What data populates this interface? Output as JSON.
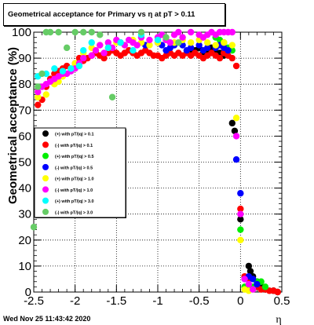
{
  "title": "Geometrical acceptance for Primary vs   η at pT > 0.11",
  "footer": "Wed Nov 25 11:43:42 2020",
  "chart_data": {
    "type": "scatter",
    "xlabel": "η",
    "ylabel": "Geometrical acceptance (%)",
    "xlim": [
      -2.5,
      0.5
    ],
    "ylim": [
      0,
      100
    ],
    "x_ticks": [
      -2.5,
      -2,
      -1.5,
      -1,
      -0.5,
      0,
      0.5
    ],
    "x_tick_labels": [
      "-2.5",
      "-2",
      "-1.5",
      "-1",
      "-0.5",
      "0",
      "0.5"
    ],
    "y_ticks": [
      0,
      10,
      20,
      30,
      40,
      50,
      60,
      70,
      80,
      90,
      100
    ],
    "y_tick_labels": [
      "0",
      "10",
      "20",
      "30",
      "40",
      "50",
      "60",
      "70",
      "80",
      "90",
      "100"
    ],
    "grid": true,
    "legend_position": "middle-left",
    "series": [
      {
        "name": "(+) with pT/|q| > 0.1",
        "color": "#000000",
        "points": [
          [
            -0.6,
            92
          ],
          [
            -0.55,
            93
          ],
          [
            -0.5,
            94
          ],
          [
            -0.45,
            92
          ],
          [
            -0.4,
            93
          ],
          [
            -0.35,
            94
          ],
          [
            -0.3,
            92
          ],
          [
            -0.25,
            92
          ],
          [
            -0.2,
            91
          ],
          [
            -0.1,
            65
          ],
          [
            -0.07,
            62
          ],
          [
            0.0,
            28
          ],
          [
            0.1,
            10
          ],
          [
            0.12,
            8
          ],
          [
            0.15,
            6
          ],
          [
            0.2,
            4
          ],
          [
            0.25,
            2
          ],
          [
            0.3,
            1
          ],
          [
            0.4,
            0.5
          ],
          [
            0.45,
            0
          ]
        ]
      },
      {
        "name": "(-) with pT/|q| > 0.1",
        "color": "#ff0000",
        "points": [
          [
            -2.45,
            72
          ],
          [
            -2.4,
            74
          ],
          [
            -2.35,
            79
          ],
          [
            -2.3,
            82
          ],
          [
            -2.25,
            84
          ],
          [
            -2.2,
            85
          ],
          [
            -2.15,
            86
          ],
          [
            -2.1,
            87
          ],
          [
            -2.0,
            88
          ],
          [
            -1.95,
            90
          ],
          [
            -1.9,
            89
          ],
          [
            -1.85,
            90
          ],
          [
            -1.8,
            91
          ],
          [
            -1.75,
            92
          ],
          [
            -1.7,
            91
          ],
          [
            -1.65,
            90
          ],
          [
            -1.6,
            92
          ],
          [
            -1.55,
            93
          ],
          [
            -1.5,
            92
          ],
          [
            -1.45,
            91
          ],
          [
            -1.4,
            92
          ],
          [
            -1.35,
            93
          ],
          [
            -1.3,
            92
          ],
          [
            -1.25,
            91
          ],
          [
            -1.2,
            92
          ],
          [
            -1.15,
            93
          ],
          [
            -1.1,
            92
          ],
          [
            -1.05,
            91
          ],
          [
            -1.0,
            91
          ],
          [
            -0.95,
            90
          ],
          [
            -0.9,
            91
          ],
          [
            -0.85,
            92
          ],
          [
            -0.8,
            91
          ],
          [
            -0.75,
            92
          ],
          [
            -0.7,
            91
          ],
          [
            -0.65,
            92
          ],
          [
            -0.6,
            91
          ],
          [
            -0.55,
            92
          ],
          [
            -0.5,
            91
          ],
          [
            -0.45,
            90
          ],
          [
            -0.4,
            91
          ],
          [
            -0.35,
            92
          ],
          [
            -0.3,
            91
          ],
          [
            -0.25,
            90
          ],
          [
            -0.2,
            92
          ],
          [
            -0.15,
            91
          ],
          [
            -0.1,
            90
          ],
          [
            -0.05,
            87
          ],
          [
            0.0,
            32
          ],
          [
            0.05,
            6
          ],
          [
            0.1,
            5
          ],
          [
            0.2,
            2
          ],
          [
            0.25,
            1
          ],
          [
            0.3,
            1
          ],
          [
            0.35,
            0.5
          ],
          [
            0.4,
            0.5
          ],
          [
            0.45,
            0
          ]
        ]
      },
      {
        "name": "(+) with pT/|q| > 0.5",
        "color": "#00ee00",
        "points": [
          [
            -0.3,
            98
          ],
          [
            -0.25,
            97
          ],
          [
            -0.2,
            96
          ],
          [
            -0.15,
            94
          ],
          [
            -0.1,
            93
          ],
          [
            0.0,
            24
          ],
          [
            0.05,
            2
          ],
          [
            0.1,
            1
          ],
          [
            0.15,
            2
          ],
          [
            0.2,
            4
          ],
          [
            0.25,
            4
          ],
          [
            0.3,
            2
          ]
        ]
      },
      {
        "name": "(-) with pT/|q| > 0.5",
        "color": "#0000ff",
        "points": [
          [
            -1.15,
            95
          ],
          [
            -1.0,
            96
          ],
          [
            -0.95,
            95
          ],
          [
            -0.9,
            93
          ],
          [
            -0.85,
            94
          ],
          [
            -0.8,
            95
          ],
          [
            -0.7,
            95
          ],
          [
            -0.65,
            93
          ],
          [
            -0.6,
            94
          ],
          [
            -0.5,
            95
          ],
          [
            -0.45,
            93
          ],
          [
            -0.4,
            94
          ],
          [
            -0.3,
            94
          ],
          [
            -0.25,
            95
          ],
          [
            -0.2,
            94
          ],
          [
            -0.15,
            93
          ],
          [
            -0.05,
            51
          ],
          [
            0.0,
            38
          ],
          [
            0.05,
            5
          ],
          [
            0.1,
            6
          ],
          [
            0.15,
            5
          ],
          [
            0.2,
            3
          ]
        ]
      },
      {
        "name": "(+) with pT/|q| > 1.0",
        "color": "#ffff00",
        "points": [
          [
            -2.45,
            75
          ],
          [
            -2.35,
            76
          ],
          [
            -2.25,
            80
          ],
          [
            -2.2,
            81
          ],
          [
            -2.15,
            83
          ],
          [
            -2.05,
            86
          ],
          [
            -2.0,
            88
          ],
          [
            -1.9,
            92
          ],
          [
            -1.8,
            94
          ],
          [
            -1.75,
            93
          ],
          [
            -1.7,
            95
          ],
          [
            -1.6,
            94
          ],
          [
            -1.5,
            96
          ],
          [
            -1.4,
            95
          ],
          [
            -1.3,
            97
          ],
          [
            -1.2,
            96
          ],
          [
            -1.1,
            95
          ],
          [
            -1.0,
            96
          ],
          [
            -0.9,
            97
          ],
          [
            -0.8,
            96
          ],
          [
            -0.7,
            97
          ],
          [
            -0.6,
            96
          ],
          [
            -0.5,
            97
          ],
          [
            -0.4,
            96
          ],
          [
            -0.3,
            95
          ],
          [
            -0.2,
            96
          ],
          [
            -0.1,
            95
          ],
          [
            -0.05,
            67
          ],
          [
            0.0,
            20
          ],
          [
            0.05,
            1
          ],
          [
            0.1,
            0.5
          ]
        ]
      },
      {
        "name": "(-) with pT/|q| > 1.0",
        "color": "#ff00ff",
        "points": [
          [
            -2.45,
            77
          ],
          [
            -2.4,
            79
          ],
          [
            -2.35,
            80
          ],
          [
            -2.3,
            81
          ],
          [
            -2.25,
            82
          ],
          [
            -2.2,
            83
          ],
          [
            -2.15,
            84
          ],
          [
            -2.1,
            84
          ],
          [
            -2.05,
            85
          ],
          [
            -2.0,
            86
          ],
          [
            -1.95,
            88
          ],
          [
            -1.9,
            90
          ],
          [
            -1.8,
            91
          ],
          [
            -1.75,
            93
          ],
          [
            -1.7,
            95
          ],
          [
            -1.65,
            92
          ],
          [
            -1.6,
            96
          ],
          [
            -1.55,
            94
          ],
          [
            -1.5,
            97
          ],
          [
            -1.45,
            96
          ],
          [
            -1.4,
            95
          ],
          [
            -1.35,
            97
          ],
          [
            -1.3,
            96
          ],
          [
            -1.25,
            95
          ],
          [
            -1.2,
            98
          ],
          [
            -1.1,
            97
          ],
          [
            -1.0,
            98
          ],
          [
            -0.95,
            99
          ],
          [
            -0.9,
            97
          ],
          [
            -0.85,
            96
          ],
          [
            -0.8,
            99
          ],
          [
            -0.75,
            100
          ],
          [
            -0.7,
            98
          ],
          [
            -0.6,
            100
          ],
          [
            -0.5,
            99
          ],
          [
            -0.45,
            98
          ],
          [
            -0.4,
            99
          ],
          [
            -0.35,
            100
          ],
          [
            -0.3,
            99
          ],
          [
            -0.25,
            100
          ],
          [
            -0.2,
            100
          ],
          [
            -0.15,
            100
          ],
          [
            -0.1,
            100
          ],
          [
            -0.05,
            60
          ],
          [
            0.0,
            30
          ],
          [
            0.05,
            5
          ],
          [
            0.1,
            3
          ],
          [
            0.15,
            1
          ]
        ]
      },
      {
        "name": "(+) with pT/|q| > 3.0",
        "color": "#00ffff",
        "points": [
          [
            -2.45,
            83
          ],
          [
            -2.35,
            84
          ],
          [
            -2.25,
            86
          ],
          [
            -2.15,
            85
          ],
          [
            -2.05,
            86
          ],
          [
            -1.95,
            87
          ],
          [
            -1.9,
            93
          ],
          [
            -1.8,
            96
          ],
          [
            -1.6,
            94
          ],
          [
            -1.5,
            56
          ],
          [
            -1.45,
            96
          ],
          [
            -1.3,
            93
          ],
          [
            -1.2,
            99
          ],
          [
            -1.0,
            97
          ]
        ]
      },
      {
        "name": "(-) with pT/|q| > 3.0",
        "color": "#66cc66",
        "points": [
          [
            -2.5,
            25
          ],
          [
            -2.45,
            79
          ],
          [
            -2.4,
            84
          ],
          [
            -2.35,
            100
          ],
          [
            -2.3,
            100
          ],
          [
            -2.2,
            100
          ],
          [
            -2.1,
            94
          ],
          [
            -2.0,
            100
          ],
          [
            -1.9,
            100
          ],
          [
            -1.8,
            100
          ],
          [
            -1.7,
            99
          ],
          [
            -1.55,
            75
          ],
          [
            -1.2,
            100
          ],
          [
            -0.9,
            98
          ],
          [
            -0.75,
            96
          ]
        ]
      }
    ]
  }
}
